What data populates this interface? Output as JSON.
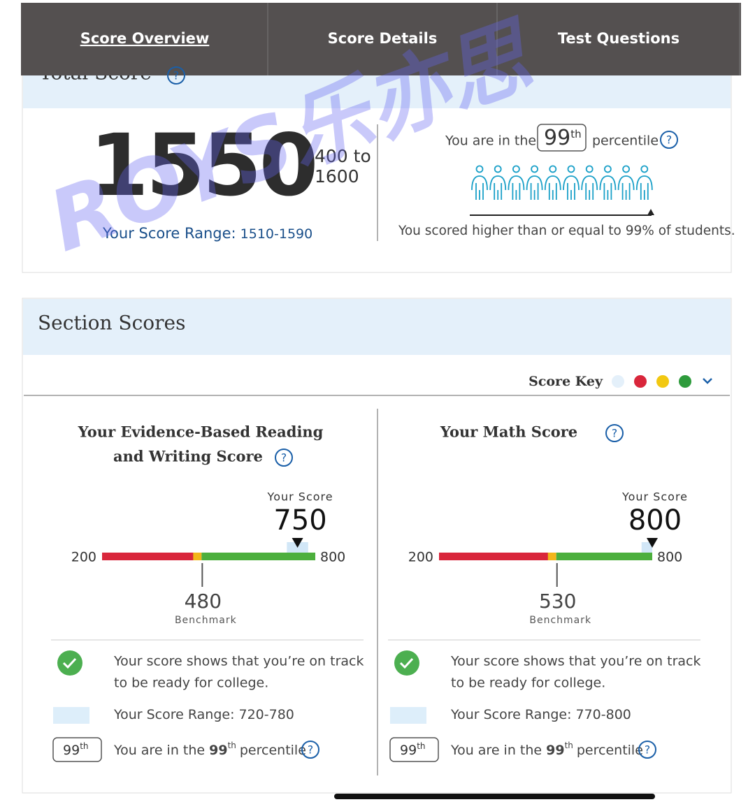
{
  "nav": {
    "tabs": [
      "Score Overview",
      "Score Details",
      "Test Questions"
    ]
  },
  "watermark": "ROYS乐亦思",
  "help_icon": "?",
  "total_score": {
    "title": "Total Score",
    "score": 1550,
    "scale_lines": [
      "400 to",
      "1600"
    ],
    "range_label": "Your Score Range:",
    "range": "1510-1590",
    "percentile_prefix": "You are in the",
    "percentile": "99",
    "ordinal": "th",
    "percentile_suffix": "percentile",
    "note": "You scored higher than or equal to 99% of students."
  },
  "section_scores": {
    "title": "Section Scores",
    "score_key": "Score Key",
    "sections": [
      {
        "title_lines": [
          "Your Evidence-Based Reading",
          "and Writing Score"
        ],
        "your_score_label": "Your Score",
        "score": 750,
        "min": 200,
        "max": 800,
        "benchmark": 480,
        "benchmark_label": "Benchmark",
        "status_lines": [
          "Your score shows that you’re on track",
          "to be ready for college."
        ],
        "range_label": "Your Score Range:",
        "score_range": {
          "low": 720,
          "high": 780,
          "label": "720-780"
        },
        "percentile_prefix": "You are in the",
        "percentile": "99",
        "ordinal": "th",
        "percentile_suffix": "percentile"
      },
      {
        "title_lines": [
          "Your Math Score"
        ],
        "your_score_label": "Your Score",
        "score": 800,
        "min": 200,
        "max": 800,
        "benchmark": 530,
        "benchmark_label": "Benchmark",
        "status_lines": [
          "Your score shows that you’re on track",
          "to be ready for college."
        ],
        "range_label": "Your Score Range:",
        "score_range": {
          "low": 770,
          "high": 800,
          "label": "770-800"
        },
        "percentile_prefix": "You are in the",
        "percentile": "99",
        "ordinal": "th",
        "percentile_suffix": "percentile"
      }
    ]
  }
}
